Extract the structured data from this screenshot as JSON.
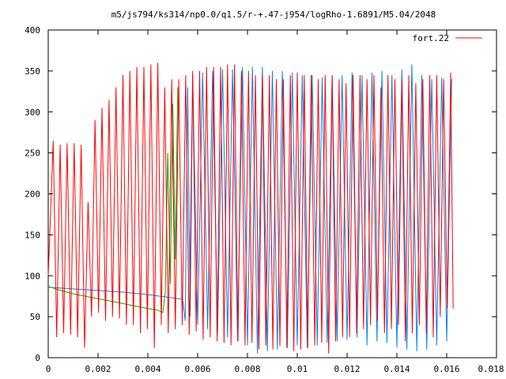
{
  "chart_data": {
    "type": "line",
    "title": "m5/js794/ks314/np0.0/q1.5/r-+.47-j954/logRho-1.6891/M5.04/2048",
    "xlabel": "",
    "ylabel": "",
    "xlim": [
      0,
      0.018
    ],
    "ylim": [
      0,
      400
    ],
    "xticks": [
      "0",
      "0.002",
      "0.004",
      "0.006",
      "0.008",
      "0.01",
      "0.012",
      "0.014",
      "0.016",
      "0.018"
    ],
    "yticks": [
      "0",
      "50",
      "100",
      "150",
      "200",
      "250",
      "300",
      "350",
      "400"
    ],
    "legend_position": "top-right",
    "grid": false,
    "series": [
      {
        "name": "fort.22",
        "color": "#ff0000",
        "x": [
          0.0,
          0.0002,
          0.00034,
          0.00048,
          0.00062,
          0.00076,
          0.0009,
          0.00104,
          0.00118,
          0.00132,
          0.00146,
          0.0016,
          0.00174,
          0.00188,
          0.00202,
          0.00216,
          0.0023,
          0.00244,
          0.00258,
          0.00272,
          0.00286,
          0.003,
          0.00314,
          0.00328,
          0.00342,
          0.00356,
          0.0037,
          0.00384,
          0.00398,
          0.00412,
          0.00426,
          0.0044,
          0.00454,
          0.00468,
          0.00482,
          0.00496,
          0.0051,
          0.00524,
          0.00538,
          0.00552,
          0.00566,
          0.0058,
          0.00594,
          0.00608,
          0.00622,
          0.00636,
          0.0065,
          0.00664,
          0.00678,
          0.00692,
          0.00706,
          0.0072,
          0.00734,
          0.00748,
          0.00762,
          0.00776,
          0.0079,
          0.00804,
          0.00818,
          0.00832,
          0.00846,
          0.0086,
          0.00874,
          0.00888,
          0.00902,
          0.00916,
          0.0093,
          0.00944,
          0.00958,
          0.00972,
          0.00986,
          0.01,
          0.01014,
          0.01028,
          0.01042,
          0.01056,
          0.0107,
          0.01084,
          0.01098,
          0.01112,
          0.01126,
          0.0114,
          0.01154,
          0.01168,
          0.01182,
          0.01196,
          0.0121,
          0.01224,
          0.01238,
          0.01252,
          0.01266,
          0.0128,
          0.01294,
          0.01308,
          0.01322,
          0.01336,
          0.0135,
          0.01364,
          0.01378,
          0.01392,
          0.01406,
          0.0142,
          0.01434,
          0.01448,
          0.01462,
          0.01476,
          0.0149,
          0.01504,
          0.01518,
          0.01532,
          0.01546,
          0.0156,
          0.01574,
          0.01588,
          0.01602,
          0.01616,
          0.01626
        ],
        "y": [
          100,
          265,
          25,
          260,
          30,
          262,
          28,
          262,
          25,
          260,
          12,
          190,
          50,
          290,
          55,
          305,
          45,
          315,
          50,
          330,
          48,
          345,
          40,
          350,
          40,
          355,
          30,
          355,
          35,
          358,
          12,
          360,
          40,
          330,
          30,
          340,
          35,
          340,
          40,
          345,
          28,
          350,
          32,
          350,
          22,
          355,
          25,
          355,
          20,
          355,
          18,
          358,
          15,
          358,
          20,
          350,
          15,
          350,
          18,
          345,
          10,
          345,
          15,
          345,
          10,
          340,
          14,
          340,
          12,
          345,
          8,
          348,
          10,
          345,
          12,
          345,
          15,
          340,
          18,
          345,
          5,
          345,
          20,
          340,
          25,
          335,
          25,
          345,
          30,
          345,
          35,
          340,
          40,
          345,
          45,
          330,
          30,
          345,
          35,
          340,
          40,
          340,
          20,
          345,
          30,
          335,
          40,
          340,
          30,
          345,
          25,
          345,
          50,
          340,
          60,
          348,
          60
        ]
      },
      {
        "name": "",
        "color": "#00aa00",
        "x": [
          0.0,
          0.0005,
          0.001,
          0.0015,
          0.002,
          0.0025,
          0.003,
          0.0035,
          0.004,
          0.0044,
          0.0046,
          0.0047,
          0.0048,
          0.0049,
          0.005,
          0.0051,
          0.0052
        ],
        "y": [
          87,
          82,
          78,
          75,
          72,
          69,
          66,
          63,
          60,
          58,
          55,
          80,
          250,
          90,
          310,
          120,
          330
        ]
      },
      {
        "name": "",
        "color": "#0080ff",
        "x": [
          0.0,
          0.001,
          0.002,
          0.003,
          0.004,
          0.005,
          0.0054,
          0.0055,
          0.0056,
          0.0057,
          0.0058,
          0.006,
          0.0062,
          0.0064,
          0.0066,
          0.0068,
          0.007,
          0.0072,
          0.0074,
          0.0076,
          0.0078,
          0.008,
          0.0082,
          0.0084,
          0.0086,
          0.0088,
          0.009,
          0.0092,
          0.0094,
          0.0096,
          0.0098,
          0.01,
          0.0102,
          0.0104,
          0.0106,
          0.0108,
          0.011,
          0.0112,
          0.0114,
          0.0116,
          0.0118,
          0.012,
          0.0122,
          0.0124,
          0.0126,
          0.0128,
          0.013,
          0.0132,
          0.0134,
          0.0136,
          0.0138,
          0.014,
          0.0142,
          0.0144,
          0.0146,
          0.0148,
          0.015,
          0.0152,
          0.0154,
          0.0156,
          0.0158,
          0.016,
          0.0162
        ],
        "y": [
          86,
          84,
          82,
          80,
          77,
          73,
          71,
          45,
          330,
          50,
          345,
          40,
          348,
          35,
          350,
          30,
          352,
          25,
          352,
          20,
          355,
          15,
          355,
          5,
          355,
          8,
          350,
          10,
          350,
          12,
          348,
          15,
          345,
          12,
          345,
          15,
          342,
          18,
          345,
          20,
          345,
          22,
          348,
          25,
          345,
          15,
          348,
          20,
          350,
          18,
          345,
          12,
          352,
          10,
          358,
          8,
          345,
          10,
          340,
          15,
          342,
          20,
          340
        ]
      }
    ]
  }
}
